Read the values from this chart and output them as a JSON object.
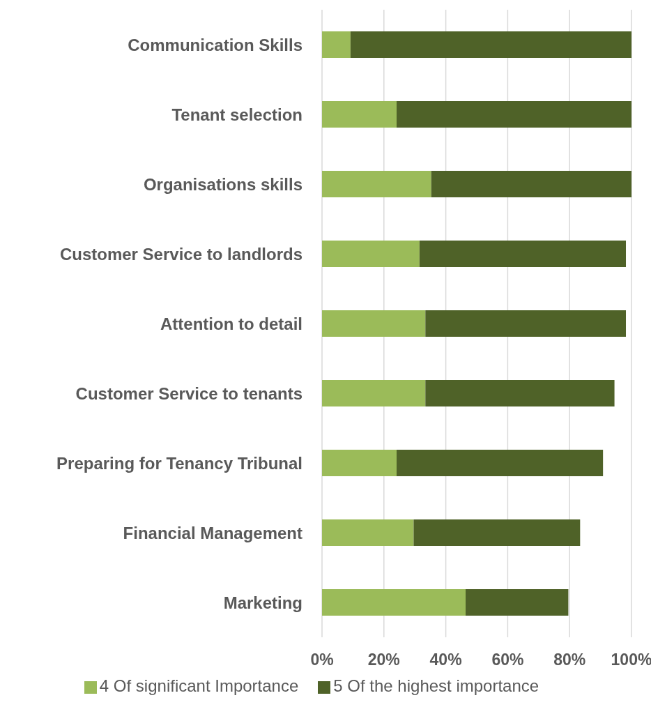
{
  "chart_data": {
    "type": "bar",
    "orientation": "horizontal",
    "stacked": true,
    "categories": [
      "Communication Skills",
      "Tenant selection",
      "Organisations skills",
      "Customer Service to landlords",
      "Attention to detail",
      "Customer Service to tenants",
      "Preparing for Tenancy Tribunal",
      "Financial Management",
      "Marketing"
    ],
    "series": [
      {
        "name": "4 Of significant Importance",
        "color": "#9bbb59",
        "values": [
          9.2,
          24.1,
          35.3,
          31.5,
          33.4,
          33.4,
          24.1,
          29.6,
          46.4
        ]
      },
      {
        "name": "5 Of the highest importance",
        "color": "#4f6228",
        "values": [
          90.8,
          75.9,
          64.7,
          66.7,
          64.8,
          61.1,
          66.7,
          53.8,
          33.2
        ]
      }
    ],
    "xlim": [
      0,
      100
    ],
    "xticks": [
      {
        "value": 0,
        "label": "0%"
      },
      {
        "value": 20,
        "label": "20%"
      },
      {
        "value": 40,
        "label": "40%"
      },
      {
        "value": 60,
        "label": "60%"
      },
      {
        "value": 80,
        "label": "80%"
      },
      {
        "value": 100,
        "label": "100%"
      }
    ],
    "grid": "x",
    "legend": "bottom"
  }
}
